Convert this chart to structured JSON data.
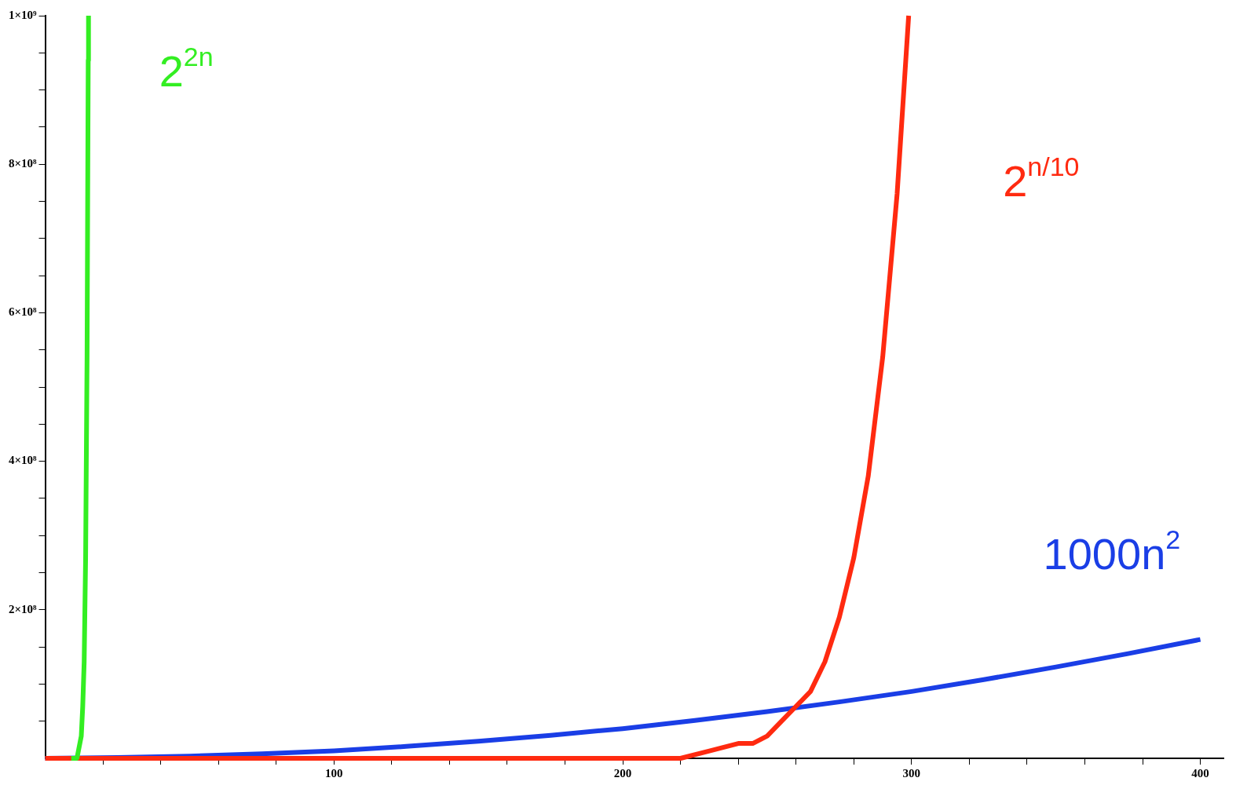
{
  "chart_data": {
    "type": "line",
    "xlim": [
      0,
      408
    ],
    "ylim": [
      0,
      1000000000
    ],
    "xticks": [
      {
        "value": 20,
        "label": null
      },
      {
        "value": 40,
        "label": null
      },
      {
        "value": 60,
        "label": null
      },
      {
        "value": 80,
        "label": null
      },
      100,
      {
        "value": 120,
        "label": null
      },
      {
        "value": 140,
        "label": null
      },
      {
        "value": 160,
        "label": null
      },
      {
        "value": 180,
        "label": null
      },
      200,
      {
        "value": 220,
        "label": null
      },
      {
        "value": 240,
        "label": null
      },
      {
        "value": 260,
        "label": null
      },
      {
        "value": 280,
        "label": null
      },
      300,
      {
        "value": 320,
        "label": null
      },
      {
        "value": 340,
        "label": null
      },
      {
        "value": 360,
        "label": null
      },
      {
        "value": 380,
        "label": null
      },
      400
    ],
    "yticks": [
      {
        "value": 50000000,
        "label": null
      },
      {
        "value": 100000000,
        "label": null
      },
      {
        "value": 150000000,
        "label": null
      },
      {
        "value": 200000000,
        "label": "2×10⁸"
      },
      {
        "value": 250000000,
        "label": null
      },
      {
        "value": 300000000,
        "label": null
      },
      {
        "value": 350000000,
        "label": null
      },
      {
        "value": 400000000,
        "label": "4×10⁸"
      },
      {
        "value": 450000000,
        "label": null
      },
      {
        "value": 500000000,
        "label": null
      },
      {
        "value": 550000000,
        "label": null
      },
      {
        "value": 600000000,
        "label": "6×10⁸"
      },
      {
        "value": 650000000,
        "label": null
      },
      {
        "value": 700000000,
        "label": null
      },
      {
        "value": 750000000,
        "label": null
      },
      {
        "value": 800000000,
        "label": "8×10⁸"
      },
      {
        "value": 850000000,
        "label": null
      },
      {
        "value": 900000000,
        "label": null
      },
      {
        "value": 950000000,
        "label": null
      },
      {
        "value": 1000000000,
        "label": "1×10⁹"
      }
    ],
    "grid": false,
    "legend": false,
    "marker": "none",
    "line_style": "solid",
    "series": [
      {
        "name": "2$^{2n}$",
        "color": "#33ee22",
        "x": [
          9,
          10,
          11,
          12,
          12.5,
          13,
          13.5,
          14,
          14.5,
          14.9,
          15
        ],
        "values": [
          0,
          0,
          0,
          20000000,
          30000000,
          70000000,
          130000000,
          270000000,
          540000000,
          940000000,
          1000000000
        ]
      },
      {
        "name": "2$^{n/10}$",
        "color": "#ff2a10",
        "x": [
          0,
          50,
          100,
          150,
          200,
          210,
          220,
          230,
          240,
          245,
          250,
          255,
          260,
          265,
          270,
          275,
          280,
          285,
          290,
          295,
          299
        ],
        "values": [
          0,
          0,
          0,
          0,
          0,
          0,
          0,
          10000000,
          20000000,
          20000000,
          30000000,
          50000000,
          70000000,
          90000000,
          130000000,
          190000000,
          270000000,
          380000000,
          540000000,
          760000000,
          1000000000
        ]
      },
      {
        "name": "1000n$^{2}$",
        "color": "#1a3ee6",
        "x": [
          0,
          25,
          50,
          75,
          100,
          125,
          150,
          175,
          200,
          225,
          250,
          275,
          300,
          325,
          350,
          375,
          400
        ],
        "values": [
          0,
          1000000,
          3000000,
          6000000,
          10000000,
          16000000,
          23000000,
          31000000,
          40000000,
          51000000,
          63000000,
          76000000,
          90000000,
          106000000,
          123000000,
          141000000,
          160000000
        ]
      }
    ]
  }
}
